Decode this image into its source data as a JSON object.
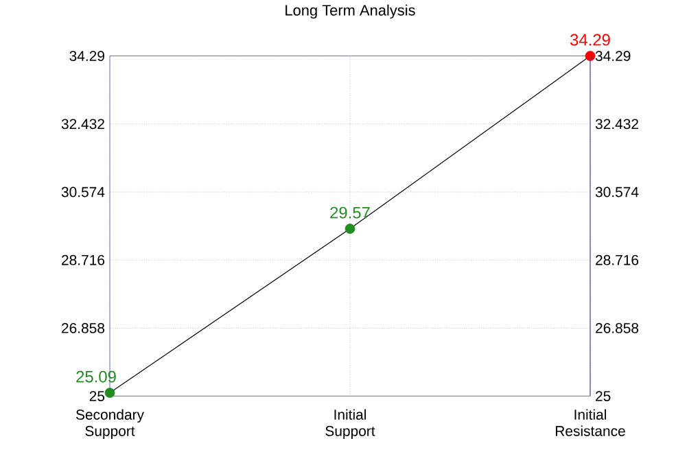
{
  "chart_data": {
    "type": "line",
    "title": "Long Term Analysis",
    "categories": [
      "Secondary Support",
      "Initial Support",
      "Initial Resistance"
    ],
    "values": [
      25.09,
      29.57,
      34.29
    ],
    "color": "#000000",
    "colors": [
      "#228b22",
      "#228b22",
      "#ff0000"
    ],
    "marker": "circle",
    "data_labels": true,
    "grid": true,
    "ylim": [
      25,
      34.29
    ],
    "yticks": [
      25,
      26.858,
      28.716,
      30.574,
      32.432,
      34.29
    ],
    "y2lim": [
      25,
      34.29
    ],
    "y2ticks": [
      25,
      26.858,
      28.716,
      30.574,
      32.432,
      34.29
    ]
  }
}
